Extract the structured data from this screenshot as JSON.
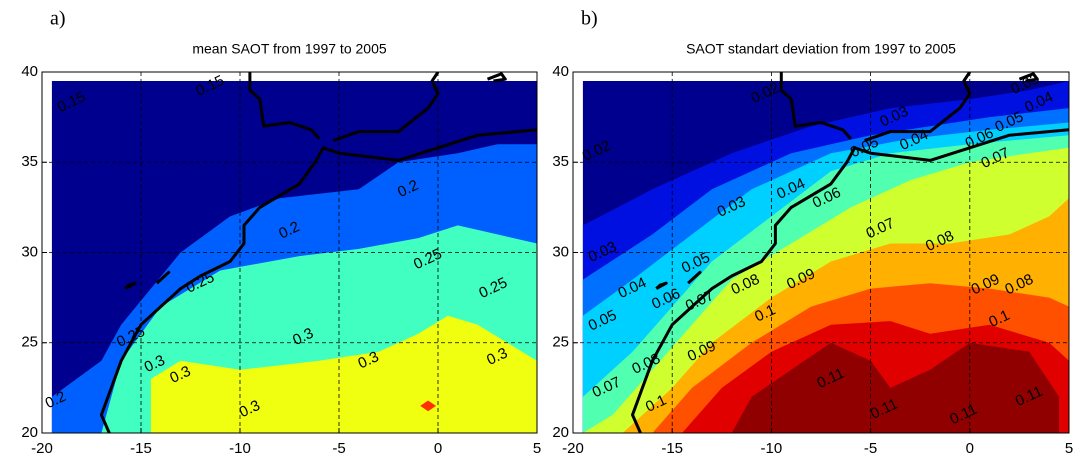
{
  "chart_data": [
    {
      "type": "contour",
      "label": "a)",
      "title": "mean  SAOT from 1997 to 2005",
      "xlim": [
        -20,
        5
      ],
      "ylim": [
        20,
        40
      ],
      "xticks": [
        -20,
        -15,
        -10,
        -5,
        0,
        5
      ],
      "yticks": [
        20,
        25,
        30,
        35,
        40
      ],
      "grid": true,
      "fills": [
        {
          "color": "#00008f",
          "x": [
            -19.5,
            -19.5,
            5,
            5
          ],
          "y": [
            20,
            39.5,
            39.5,
            20
          ]
        },
        {
          "color": "#0060ff",
          "x": [
            -19.5,
            -19.5,
            -17,
            -16,
            -14.5,
            -13,
            -10.5,
            -8,
            -4,
            -2,
            1,
            3,
            5,
            5
          ],
          "y": [
            20,
            22,
            24,
            26,
            28,
            30,
            32,
            33,
            33.5,
            35,
            35.5,
            36,
            36,
            20
          ]
        },
        {
          "color": "#40ffc0",
          "x": [
            -17,
            -16,
            -14,
            -11,
            -7,
            -4,
            -1,
            1,
            3,
            5,
            5
          ],
          "y": [
            20,
            24,
            27,
            29,
            29.8,
            30.2,
            30.8,
            31.5,
            31,
            30.5,
            20
          ]
        },
        {
          "color": "#f0ff10",
          "x": [
            -14.5,
            -14.5,
            -13,
            -10,
            -6,
            -3,
            -1,
            0.5,
            2,
            3.5,
            5,
            5
          ],
          "y": [
            20,
            23,
            24,
            23.5,
            24,
            24.5,
            25.5,
            26.5,
            26,
            25,
            24,
            20
          ]
        },
        {
          "color": "#ff3000",
          "x": [
            -0.9,
            -0.5,
            -0.1,
            -0.5
          ],
          "y": [
            21.5,
            21.8,
            21.5,
            21.2
          ]
        }
      ],
      "contour_labels": [
        {
          "value": 0.15,
          "x": -18.5,
          "y": 38.3
        },
        {
          "value": 0.15,
          "x": -11.5,
          "y": 39.2
        },
        {
          "value": 0.2,
          "x": -1.5,
          "y": 33.5
        },
        {
          "value": 0.2,
          "x": -7.5,
          "y": 31.2
        },
        {
          "value": 0.2,
          "x": -19.3,
          "y": 21.8
        },
        {
          "value": 0.25,
          "x": -12,
          "y": 28.3
        },
        {
          "value": 0.25,
          "x": -0.5,
          "y": 29.6
        },
        {
          "value": 0.25,
          "x": 2.8,
          "y": 28
        },
        {
          "value": 0.25,
          "x": -15.5,
          "y": 25.3
        },
        {
          "value": 0.3,
          "x": -14.3,
          "y": 23.8
        },
        {
          "value": 0.3,
          "x": -13,
          "y": 23.2
        },
        {
          "value": 0.3,
          "x": -6.8,
          "y": 25.3
        },
        {
          "value": 0.3,
          "x": -3.5,
          "y": 24
        },
        {
          "value": 0.3,
          "x": 3,
          "y": 24.2
        },
        {
          "value": 0.3,
          "x": -9.5,
          "y": 21.3
        }
      ]
    },
    {
      "type": "contour",
      "label": "b)",
      "title": "SAOT standart deviation from  1997 to 2005",
      "xlim": [
        -20,
        5
      ],
      "ylim": [
        20,
        40
      ],
      "xticks": [
        -20,
        -15,
        -10,
        -5,
        0,
        5
      ],
      "yticks": [
        20,
        25,
        30,
        35,
        40
      ],
      "grid": true,
      "fills": [
        {
          "color": "#00008f",
          "x": [
            -19.5,
            -19.5,
            5,
            5
          ],
          "y": [
            20,
            39.5,
            39.5,
            20
          ]
        },
        {
          "color": "#0010e0",
          "x": [
            -19.5,
            -19.5,
            -16,
            -12,
            -8,
            -4,
            0,
            3,
            5,
            5
          ],
          "y": [
            20,
            31.5,
            33.5,
            35.5,
            37,
            38,
            38.5,
            39,
            39.5,
            20
          ]
        },
        {
          "color": "#0070ff",
          "x": [
            -19.5,
            -19.5,
            -16,
            -13,
            -9,
            -5,
            -2,
            1,
            5,
            5
          ],
          "y": [
            20,
            28.5,
            31,
            33.5,
            35.5,
            36.5,
            37,
            37.5,
            38,
            20
          ]
        },
        {
          "color": "#00d0ff",
          "x": [
            -19.5,
            -19.5,
            -17,
            -14,
            -11,
            -7,
            -3,
            1,
            5,
            5
          ],
          "y": [
            20,
            26.5,
            28.5,
            31,
            33.5,
            35.5,
            36.3,
            36.8,
            37.2,
            20
          ]
        },
        {
          "color": "#50ffb0",
          "x": [
            -19.5,
            -19.5,
            -17,
            -15,
            -13,
            -10,
            -7,
            -4,
            0,
            5,
            5
          ],
          "y": [
            20,
            22,
            24.5,
            27,
            29.5,
            32,
            34.5,
            35.5,
            36,
            36.5,
            20
          ]
        },
        {
          "color": "#d0ff30",
          "x": [
            -19.5,
            -18,
            -16,
            -14,
            -12,
            -9,
            -6,
            -3,
            0,
            3,
            5,
            5
          ],
          "y": [
            20,
            21,
            23.5,
            26,
            28.5,
            30.5,
            32.5,
            34,
            35,
            35.5,
            35.8,
            20
          ]
        },
        {
          "color": "#ffb000",
          "x": [
            -17.5,
            -15,
            -13,
            -10,
            -7,
            -4,
            -1,
            2,
            4,
            5,
            5
          ],
          "y": [
            20,
            22.5,
            25,
            27.5,
            29.5,
            30.5,
            30.5,
            31,
            32,
            33,
            20
          ]
        },
        {
          "color": "#ff5000",
          "x": [
            -16,
            -14,
            -11,
            -8,
            -5,
            -2,
            1,
            4,
            5,
            5
          ],
          "y": [
            20,
            22.5,
            25,
            27,
            28,
            28.3,
            28,
            27.5,
            27,
            20
          ]
        },
        {
          "color": "#e00000",
          "x": [
            -14.5,
            -12.5,
            -10,
            -7,
            -4,
            -2,
            1,
            4,
            5,
            5
          ],
          "y": [
            20,
            22.5,
            24.5,
            26,
            26.2,
            25.5,
            26,
            25,
            24,
            20
          ]
        },
        {
          "color": "#900000",
          "x": [
            -12,
            -11,
            -9,
            -7,
            -5,
            -4,
            -2,
            0,
            3,
            4.5,
            4.5
          ],
          "y": [
            20,
            22,
            23.5,
            25,
            24,
            22.5,
            23.5,
            25,
            24.5,
            22,
            20
          ]
        }
      ],
      "contour_labels": [
        {
          "value": 0.02,
          "x": -18.8,
          "y": 35.6
        },
        {
          "value": 0.02,
          "x": -10.3,
          "y": 38.8
        },
        {
          "value": 0.03,
          "x": -3.8,
          "y": 37.5
        },
        {
          "value": 0.03,
          "x": 2.8,
          "y": 39.3
        },
        {
          "value": 0.03,
          "x": -12,
          "y": 32.5
        },
        {
          "value": 0.03,
          "x": -18.5,
          "y": 30
        },
        {
          "value": 0.04,
          "x": -9,
          "y": 33.5
        },
        {
          "value": 0.04,
          "x": -2.8,
          "y": 36.2
        },
        {
          "value": 0.04,
          "x": -17,
          "y": 28
        },
        {
          "value": 0.04,
          "x": 3.5,
          "y": 38.3
        },
        {
          "value": 0.05,
          "x": -18.5,
          "y": 26.2
        },
        {
          "value": 0.05,
          "x": -5.3,
          "y": 35.8
        },
        {
          "value": 0.05,
          "x": -13.8,
          "y": 29.4
        },
        {
          "value": 0.05,
          "x": 2,
          "y": 37.2
        },
        {
          "value": 0.06,
          "x": -7.2,
          "y": 33
        },
        {
          "value": 0.06,
          "x": -15.3,
          "y": 27.4
        },
        {
          "value": 0.06,
          "x": 0.5,
          "y": 36.3
        },
        {
          "value": 0.07,
          "x": -4.5,
          "y": 31.3
        },
        {
          "value": 0.07,
          "x": -13.6,
          "y": 27.3
        },
        {
          "value": 0.07,
          "x": 1.3,
          "y": 35.2
        },
        {
          "value": 0.07,
          "x": -18.3,
          "y": 22.5
        },
        {
          "value": 0.08,
          "x": -1.5,
          "y": 30.6
        },
        {
          "value": 0.08,
          "x": -11.3,
          "y": 28.2
        },
        {
          "value": 0.08,
          "x": 2.5,
          "y": 28.2
        },
        {
          "value": 0.08,
          "x": -16.3,
          "y": 23.8
        },
        {
          "value": 0.09,
          "x": -8.5,
          "y": 28.5
        },
        {
          "value": 0.09,
          "x": 0.8,
          "y": 28.2
        },
        {
          "value": 0.09,
          "x": -13.5,
          "y": 24.5
        },
        {
          "value": 0.1,
          "x": -10.3,
          "y": 26.6
        },
        {
          "value": 0.1,
          "x": 1.5,
          "y": 26.3
        },
        {
          "value": 0.1,
          "x": -15.8,
          "y": 21.6
        },
        {
          "value": 0.11,
          "x": -7,
          "y": 23
        },
        {
          "value": 0.11,
          "x": -4.3,
          "y": 21.3
        },
        {
          "value": 0.11,
          "x": -0.3,
          "y": 21
        },
        {
          "value": 0.11,
          "x": 3,
          "y": 22
        }
      ]
    }
  ]
}
